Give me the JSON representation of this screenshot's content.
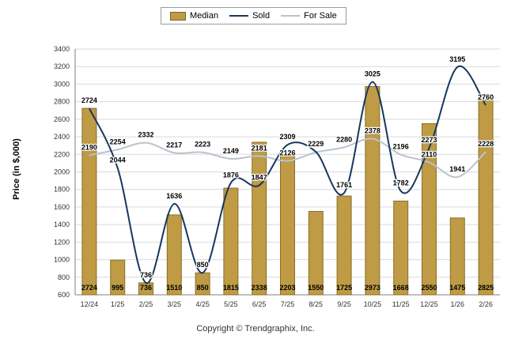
{
  "page": {
    "footer": "Copyright © Trendgraphix, Inc.",
    "background": "#ffffff"
  },
  "legend": {
    "items": [
      {
        "label": "Median",
        "type": "bar",
        "color": "#BE9B44"
      },
      {
        "label": "Sold",
        "type": "line",
        "color": "#17375E"
      },
      {
        "label": "For Sale",
        "type": "line",
        "color": "#B9C3CF"
      }
    ]
  },
  "chart_data": {
    "type": "bar+line",
    "title": "",
    "ylabel": "Price (in $,000)",
    "ylim": [
      600,
      3400
    ],
    "ytick_step": 200,
    "grid": true,
    "legend_position": "top-center",
    "categories": [
      "12/24",
      "1/25",
      "2/25",
      "3/25",
      "4/25",
      "5/25",
      "6/25",
      "7/25",
      "8/25",
      "9/25",
      "10/25",
      "11/25",
      "12/25",
      "1/26",
      "2/26"
    ],
    "series": [
      {
        "name": "Median",
        "type": "bar",
        "color": "#BE9B44",
        "values": [
          2724,
          995,
          736,
          1510,
          850,
          1815,
          2338,
          2203,
          1550,
          1725,
          2973,
          1668,
          2550,
          1475,
          2825
        ]
      },
      {
        "name": "Sold",
        "type": "line",
        "color": "#17375E",
        "values": [
          2724,
          2044,
          736,
          1636,
          850,
          1876,
          1847,
          2309,
          2229,
          1761,
          3025,
          1782,
          2273,
          3195,
          2760
        ]
      },
      {
        "name": "For Sale",
        "type": "line",
        "color": "#B9C3CF",
        "values": [
          2190,
          2254,
          2332,
          2217,
          2223,
          2149,
          2181,
          2126,
          2223,
          2280,
          2378,
          2196,
          2110,
          1941,
          2228
        ]
      }
    ],
    "colors": {
      "grid": "#d9d9d9",
      "axis": "#7f7f7f",
      "bar_border": "#8a6f2a",
      "label_text": "#000000"
    }
  }
}
